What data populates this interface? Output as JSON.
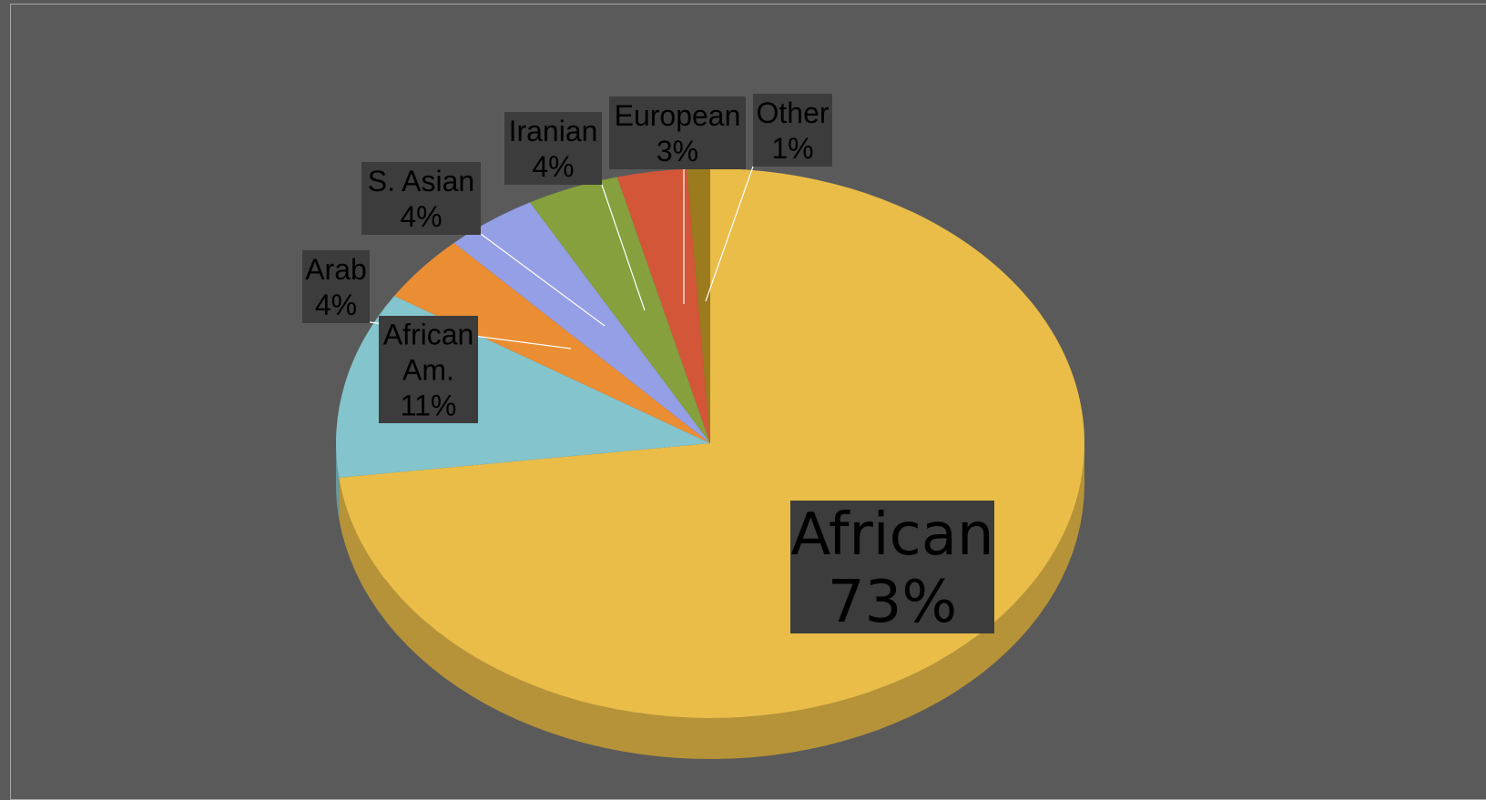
{
  "chart_data": {
    "type": "pie",
    "title": "",
    "three_d": true,
    "legend": "none",
    "categories": [
      "African",
      "African Am.",
      "Arab",
      "S. Asian",
      "Iranian",
      "European",
      "Other"
    ],
    "values": [
      73,
      11,
      4,
      4,
      4,
      3,
      1
    ],
    "value_labels": [
      "73%",
      "11%",
      "4%",
      "4%",
      "4%",
      "3%",
      "1%"
    ],
    "label_lines": [
      [
        "African",
        "73%"
      ],
      [
        "African",
        "Am.",
        "11%"
      ],
      [
        "Arab",
        "4%"
      ],
      [
        "S. Asian",
        "4%"
      ],
      [
        "Iranian",
        "4%"
      ],
      [
        "European",
        "3%"
      ],
      [
        "Other",
        "1%"
      ]
    ],
    "colors": [
      "#e9bd48",
      "#84c4cc",
      "#ea8d33",
      "#949fe6",
      "#85a03d",
      "#d45638",
      "#9c7a1e"
    ]
  },
  "theme": {
    "background": "#5a5a5a",
    "label_box": "#3c3c3c",
    "leader_line": "#ffffff"
  }
}
